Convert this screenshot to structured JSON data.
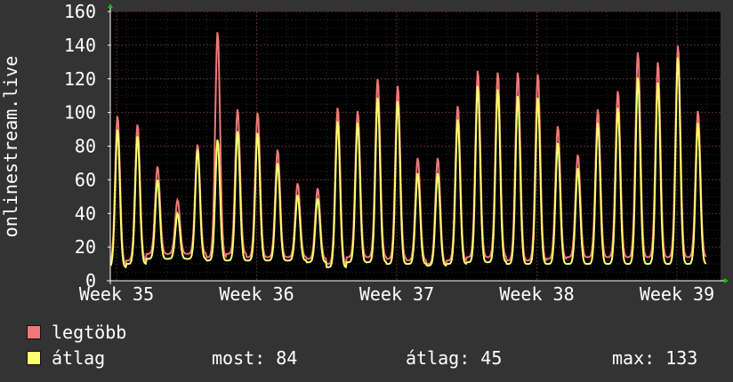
{
  "chart_data": {
    "type": "line",
    "ylabel": "onlinestream.live",
    "ylim": [
      0,
      160
    ],
    "yticks": [
      0,
      20,
      40,
      60,
      80,
      100,
      120,
      140,
      160
    ],
    "xticks": [
      "Week 35",
      "Week 36",
      "Week 37",
      "Week 38",
      "Week 39"
    ],
    "grid": true,
    "background": "#000000",
    "series": [
      {
        "name": "legtöbb",
        "color": "#f07878",
        "daily": [
          [
            10,
            98
          ],
          [
            12,
            93
          ],
          [
            16,
            68
          ],
          [
            16,
            48
          ],
          [
            16,
            81
          ],
          [
            14,
            148
          ],
          [
            16,
            102
          ],
          [
            14,
            100
          ],
          [
            14,
            78
          ],
          [
            14,
            58
          ],
          [
            13,
            55
          ],
          [
            10,
            103
          ],
          [
            14,
            101
          ],
          [
            14,
            120
          ],
          [
            13,
            116
          ],
          [
            12,
            73
          ],
          [
            10,
            73
          ],
          [
            12,
            104
          ],
          [
            14,
            125
          ],
          [
            14,
            124
          ],
          [
            12,
            124
          ],
          [
            12,
            123
          ],
          [
            13,
            92
          ],
          [
            14,
            75
          ],
          [
            14,
            102
          ],
          [
            14,
            113
          ],
          [
            14,
            136
          ],
          [
            14,
            130
          ],
          [
            14,
            140
          ],
          [
            14,
            101
          ]
        ]
      },
      {
        "name": "átlag",
        "color": "#ffff70",
        "daily": [
          [
            8,
            90
          ],
          [
            10,
            86
          ],
          [
            13,
            60
          ],
          [
            13,
            40
          ],
          [
            13,
            78
          ],
          [
            12,
            84
          ],
          [
            12,
            89
          ],
          [
            12,
            88
          ],
          [
            12,
            70
          ],
          [
            12,
            51
          ],
          [
            11,
            49
          ],
          [
            8,
            95
          ],
          [
            11,
            94
          ],
          [
            11,
            109
          ],
          [
            10,
            107
          ],
          [
            10,
            64
          ],
          [
            9,
            64
          ],
          [
            10,
            96
          ],
          [
            11,
            116
          ],
          [
            11,
            114
          ],
          [
            10,
            110
          ],
          [
            10,
            109
          ],
          [
            10,
            82
          ],
          [
            10,
            67
          ],
          [
            10,
            94
          ],
          [
            10,
            103
          ],
          [
            10,
            121
          ],
          [
            10,
            118
          ],
          [
            10,
            133
          ],
          [
            10,
            94
          ]
        ]
      }
    ],
    "legend": [
      {
        "name": "legtöbb",
        "color": "#f07878"
      },
      {
        "name": "átlag",
        "color": "#ffff70"
      }
    ],
    "stats": {
      "most_label": "most:",
      "most_value": "84",
      "atlag_label": "átlag:",
      "atlag_value": "45",
      "max_label": "max:",
      "max_value": "133"
    }
  }
}
